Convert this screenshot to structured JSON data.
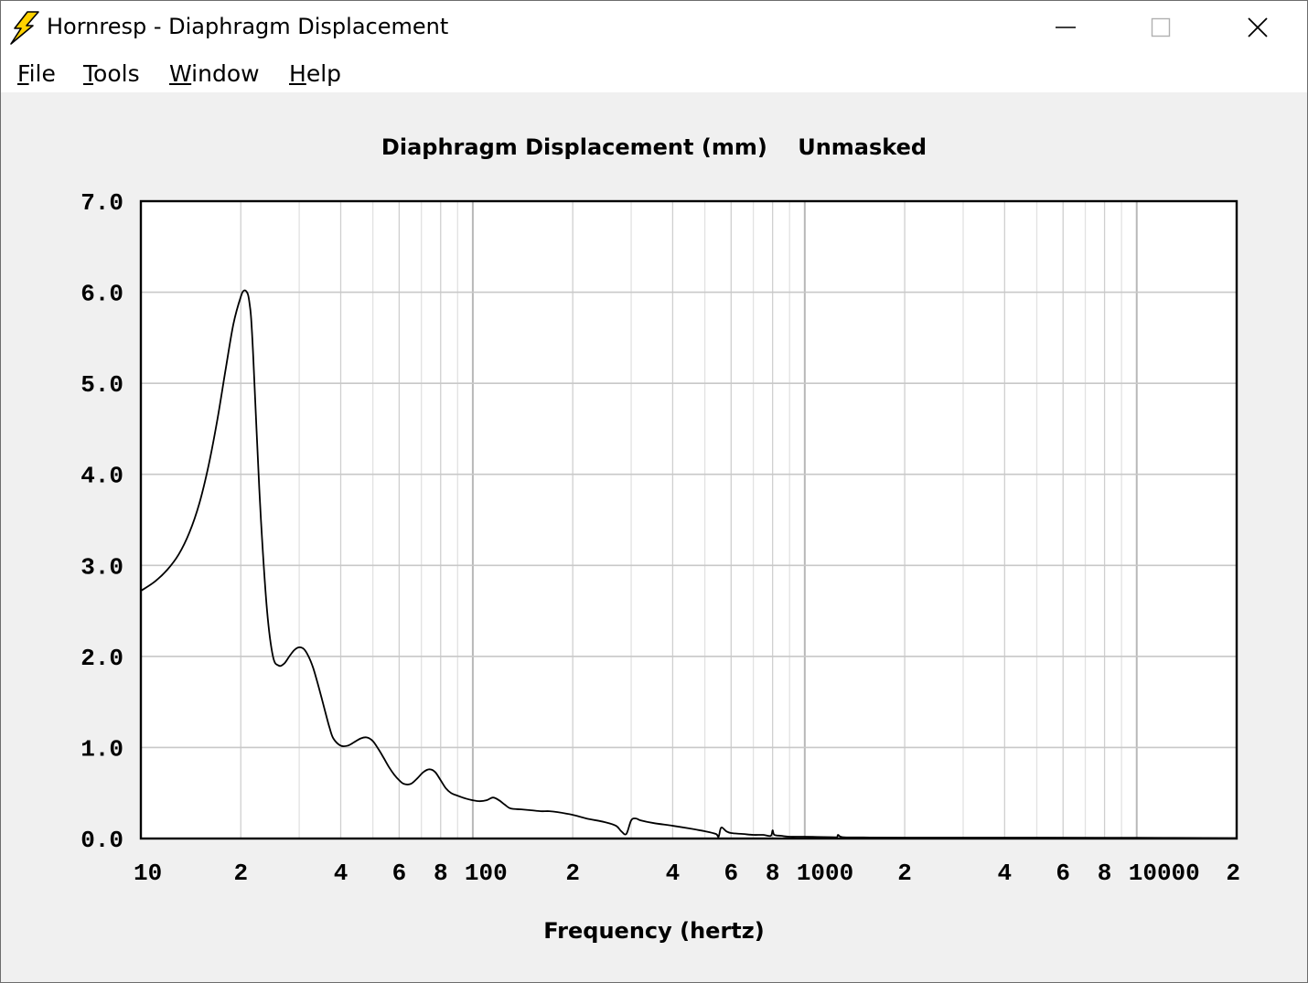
{
  "window": {
    "title": "Hornresp - Diaphragm Displacement",
    "icon": "lightning-bolt-icon",
    "controls": [
      "minimize-icon",
      "maximize-icon",
      "close-icon"
    ]
  },
  "menu": {
    "items": [
      {
        "label": "File",
        "accel": "F"
      },
      {
        "label": "Tools",
        "accel": "T"
      },
      {
        "label": "Window",
        "accel": "W"
      },
      {
        "label": "Help",
        "accel": "H"
      }
    ]
  },
  "chart": {
    "title": "Diaphragm Displacement (mm)    Unmasked",
    "xlabel": "Frequency (hertz)"
  },
  "colors": {
    "background": "#f0f0f0",
    "plot_bg": "#ffffff",
    "grid": "#c8c8c8",
    "curve": "#000000",
    "icon_yellow": "#ffd200"
  },
  "chart_data": {
    "type": "line",
    "title": "Diaphragm Displacement (mm)    Unmasked",
    "xlabel": "Frequency (hertz)",
    "ylabel": "",
    "x_scale": "log",
    "xlim": [
      10,
      20000
    ],
    "ylim": [
      0,
      7
    ],
    "grid": true,
    "y_ticks": [
      "0.0",
      "1.0",
      "2.0",
      "3.0",
      "4.0",
      "5.0",
      "6.0",
      "7.0"
    ],
    "x_tick_labels": [
      {
        "value": 10,
        "label": "10"
      },
      {
        "value": 20,
        "label": "2"
      },
      {
        "value": 40,
        "label": "4"
      },
      {
        "value": 60,
        "label": "6"
      },
      {
        "value": 80,
        "label": "8"
      },
      {
        "value": 100,
        "label": "100"
      },
      {
        "value": 200,
        "label": "2"
      },
      {
        "value": 400,
        "label": "4"
      },
      {
        "value": 600,
        "label": "6"
      },
      {
        "value": 800,
        "label": "8"
      },
      {
        "value": 1000,
        "label": "1000"
      },
      {
        "value": 2000,
        "label": "2"
      },
      {
        "value": 4000,
        "label": "4"
      },
      {
        "value": 6000,
        "label": "6"
      },
      {
        "value": 8000,
        "label": "8"
      },
      {
        "value": 10000,
        "label": "10000"
      },
      {
        "value": 20000,
        "label": "2"
      }
    ],
    "series": [
      {
        "x": [
          10,
          11,
          12,
          13,
          14,
          15,
          16,
          17,
          18,
          19,
          20,
          20.5,
          21,
          21.3,
          21.5,
          21.8,
          22.3,
          23,
          24,
          25,
          26,
          27,
          28,
          29,
          30,
          31,
          32,
          33,
          34,
          35,
          36,
          37,
          38,
          40,
          42,
          44,
          46,
          48,
          50,
          52,
          54,
          56,
          58,
          60,
          62,
          65,
          68,
          71,
          74,
          77,
          80,
          83,
          86,
          90,
          95,
          100,
          105,
          110,
          115,
          120,
          125,
          130,
          140,
          150,
          160,
          170,
          180,
          200,
          220,
          250,
          270,
          280,
          290,
          300,
          310,
          320,
          350,
          400,
          450,
          500,
          540,
          550,
          560,
          580,
          600,
          650,
          700,
          750,
          790,
          800,
          810,
          850,
          900,
          1000,
          1200,
          1250,
          1260,
          1300,
          1500,
          2000,
          5000,
          10000,
          20000
        ],
        "y": [
          2.72,
          2.82,
          2.95,
          3.12,
          3.36,
          3.68,
          4.1,
          4.6,
          5.15,
          5.65,
          5.95,
          6.02,
          5.98,
          5.85,
          5.7,
          5.3,
          4.5,
          3.5,
          2.5,
          2.0,
          1.9,
          1.92,
          2.0,
          2.07,
          2.1,
          2.08,
          2.0,
          1.88,
          1.72,
          1.55,
          1.38,
          1.22,
          1.1,
          1.02,
          1.02,
          1.06,
          1.1,
          1.11,
          1.07,
          0.98,
          0.88,
          0.78,
          0.7,
          0.64,
          0.6,
          0.6,
          0.66,
          0.73,
          0.76,
          0.73,
          0.64,
          0.55,
          0.5,
          0.47,
          0.44,
          0.42,
          0.41,
          0.42,
          0.45,
          0.42,
          0.37,
          0.33,
          0.32,
          0.31,
          0.3,
          0.3,
          0.29,
          0.26,
          0.22,
          0.18,
          0.14,
          0.08,
          0.05,
          0.2,
          0.22,
          0.2,
          0.17,
          0.14,
          0.11,
          0.08,
          0.05,
          0.02,
          0.12,
          0.08,
          0.06,
          0.05,
          0.04,
          0.04,
          0.03,
          0.09,
          0.04,
          0.03,
          0.02,
          0.02,
          0.015,
          0.015,
          0.04,
          0.015,
          0.012,
          0.01,
          0.01,
          0.008,
          0.005
        ]
      }
    ]
  }
}
